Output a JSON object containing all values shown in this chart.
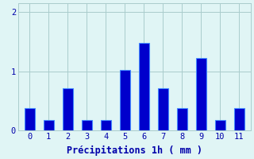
{
  "categories": [
    0,
    1,
    2,
    3,
    4,
    5,
    6,
    7,
    8,
    9,
    10,
    11
  ],
  "values": [
    0.38,
    0.18,
    0.72,
    0.18,
    0.18,
    1.02,
    1.48,
    0.72,
    0.38,
    1.22,
    0.18,
    0.38
  ],
  "bar_color": "#0000cc",
  "bar_edge_color": "#4488ff",
  "background_color": "#e0f5f5",
  "xlabel": "Précipitations 1h ( mm )",
  "ylim": [
    0,
    2.15
  ],
  "yticks": [
    0,
    1,
    2
  ],
  "ytick_labels": [
    "0",
    "1",
    "2"
  ],
  "grid_color": "#aacccc",
  "xlabel_color": "#0000aa",
  "tick_color": "#0000aa",
  "bar_width": 0.55,
  "tick_fontsize": 7.5,
  "xlabel_fontsize": 8.5
}
